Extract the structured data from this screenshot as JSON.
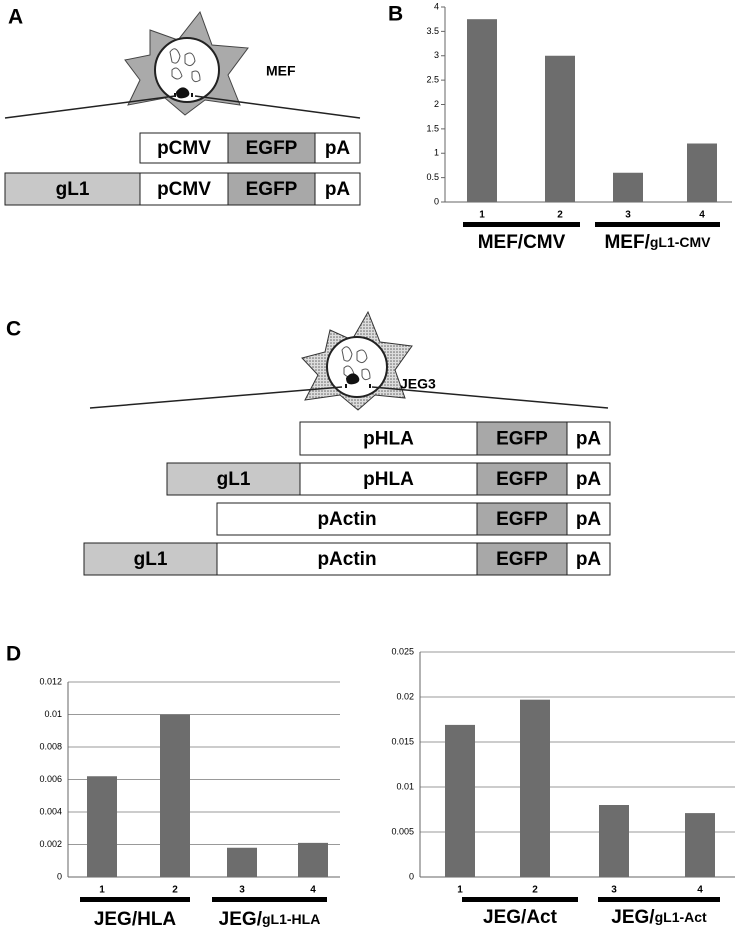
{
  "panel_labels": [
    "A",
    "B",
    "C",
    "D"
  ],
  "diagram_a": {
    "cell": "MEF",
    "rows": [
      [
        "pCMV",
        "EGFP",
        "pA"
      ],
      [
        "gL1",
        "pCMV",
        "EGFP",
        "pA"
      ]
    ]
  },
  "diagram_c": {
    "cell": "JEG3",
    "rows": [
      [
        "pHLA",
        "EGFP",
        "pA"
      ],
      [
        "gL1",
        "pHLA",
        "EGFP",
        "pA"
      ],
      [
        "pActin",
        "EGFP",
        "pA"
      ],
      [
        "gL1",
        "pActin",
        "EGFP",
        "pA"
      ]
    ]
  },
  "chart_data": [
    {
      "type": "bar",
      "categories": [
        "1",
        "2",
        "3",
        "4"
      ],
      "values": [
        3.75,
        3.0,
        0.6,
        1.2
      ],
      "color": "#6d6d6d",
      "ylim": [
        0,
        4
      ],
      "yticks": [
        0,
        0.5,
        1,
        1.5,
        2,
        2.5,
        3,
        3.5,
        4
      ],
      "grid": false,
      "groups": [
        {
          "parts": [
            "MEF/CMV"
          ]
        },
        {
          "parts": [
            "MEF/",
            "gL1-CMV"
          ]
        }
      ]
    },
    {
      "type": "bar",
      "categories": [
        "1",
        "2",
        "3",
        "4"
      ],
      "values": [
        0.0062,
        0.01,
        0.0018,
        0.0021
      ],
      "color": "#6d6d6d",
      "ylim": [
        0,
        0.012
      ],
      "yticks": [
        0,
        0.002,
        0.004,
        0.006,
        0.008,
        0.01,
        0.012
      ],
      "grid": true,
      "groups": [
        {
          "parts": [
            "JEG/HLA"
          ]
        },
        {
          "parts": [
            "JEG/",
            "gL1-HLA"
          ]
        }
      ]
    },
    {
      "type": "bar",
      "categories": [
        "1",
        "2",
        "3",
        "4"
      ],
      "values": [
        0.0169,
        0.0197,
        0.008,
        0.0071
      ],
      "color": "#6d6d6d",
      "ylim": [
        0,
        0.025
      ],
      "yticks": [
        0,
        0.005,
        0.01,
        0.015,
        0.02,
        0.025
      ],
      "grid": true,
      "groups": [
        {
          "parts": [
            "JEG/Act"
          ]
        },
        {
          "parts": [
            "JEG/",
            "gL1-Act"
          ]
        }
      ]
    }
  ]
}
